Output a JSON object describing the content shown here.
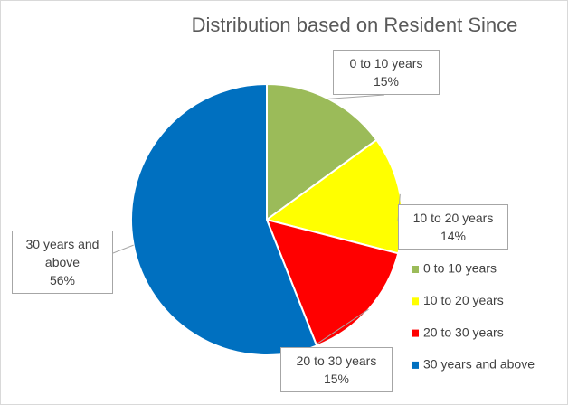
{
  "chart_data": {
    "type": "pie",
    "title": "Distribution based on Resident Since",
    "categories": [
      "0 to 10 years",
      "10 to 20 years",
      "20 to 30 years",
      "30 years and above"
    ],
    "values": [
      15,
      14,
      15,
      56
    ],
    "value_labels": [
      "15%",
      "14%",
      "15%",
      "56%"
    ],
    "colors": [
      "#9bbb59",
      "#ffff00",
      "#ff0000",
      "#0070c0"
    ],
    "legend": "right"
  }
}
